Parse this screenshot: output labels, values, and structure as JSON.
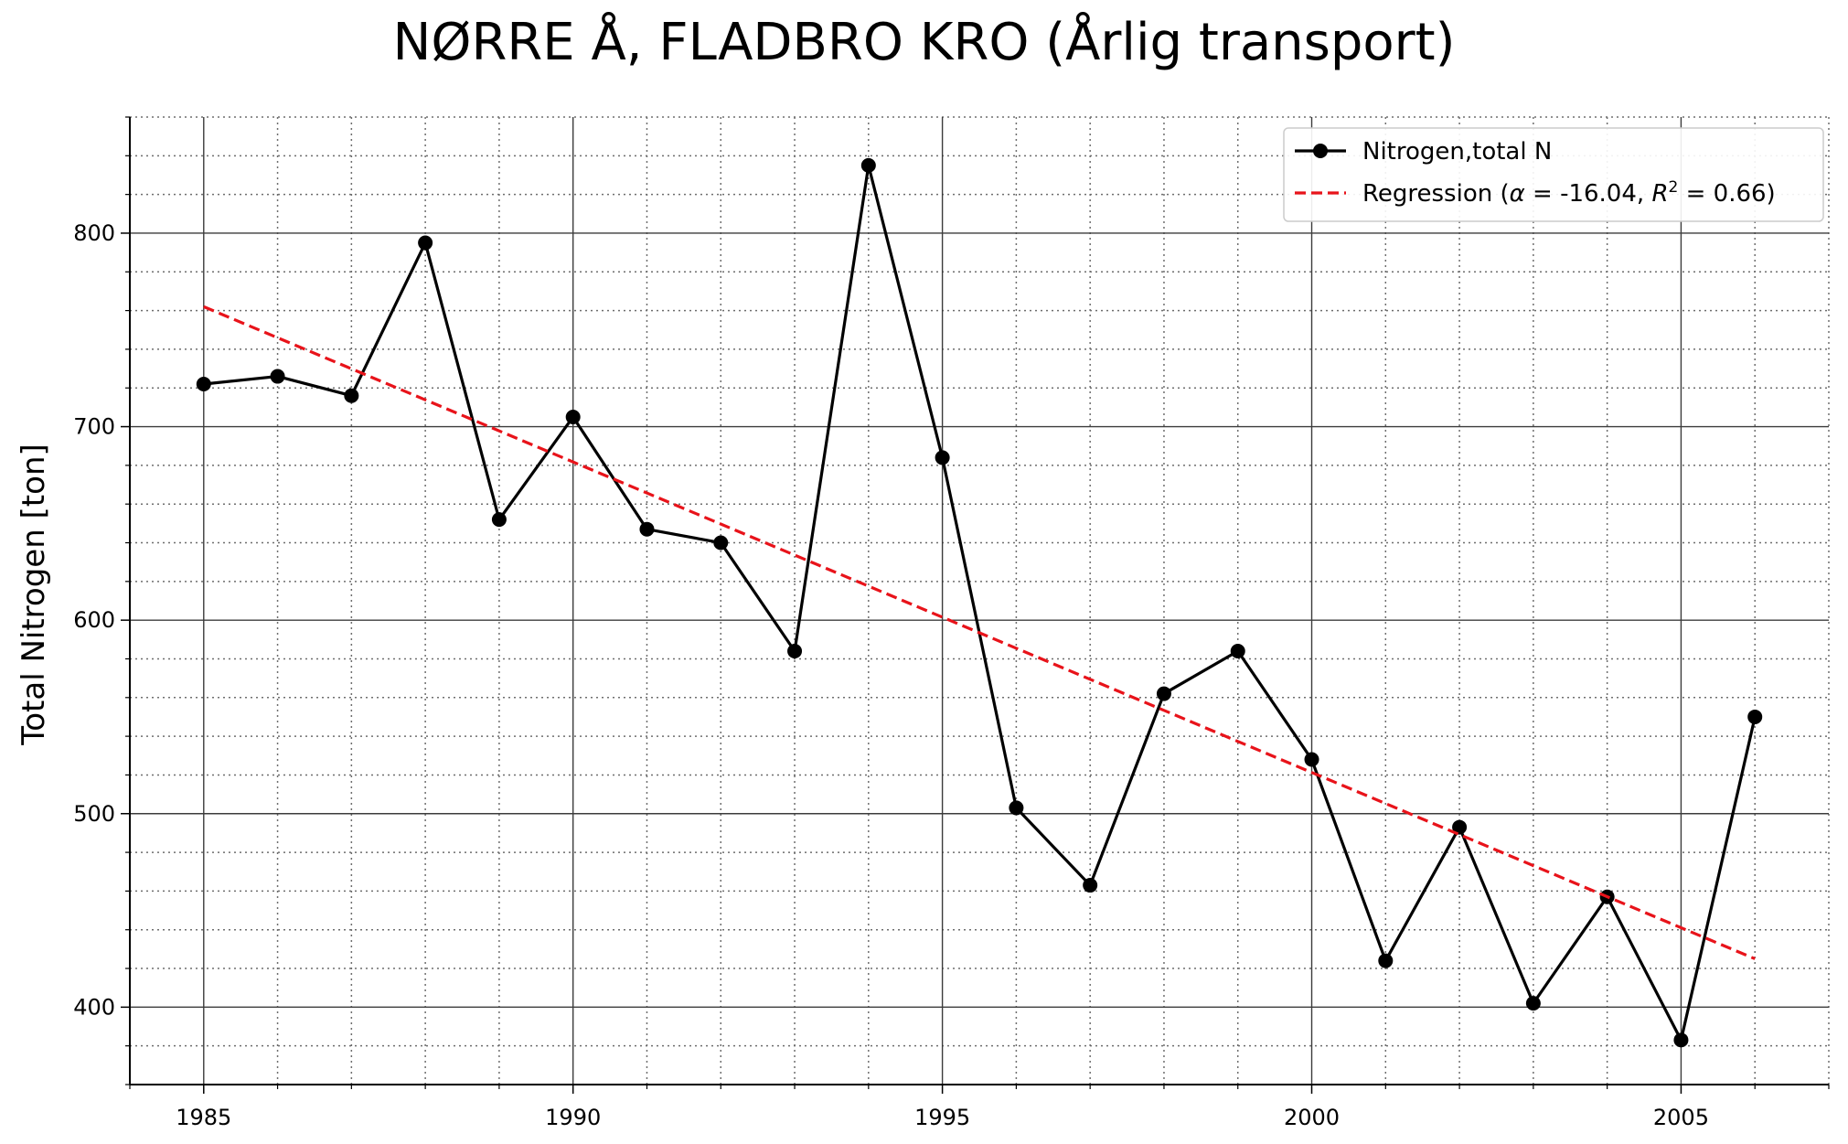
{
  "chart_data": {
    "type": "line",
    "title": "NØRRE Å, FLADBRO KRO (Årlig transport)",
    "xlabel": "",
    "ylabel": "Total Nitrogen [ton]",
    "xlim": [
      1984.0,
      2007.0
    ],
    "ylim": [
      360,
      860
    ],
    "xticks": [
      1985,
      1990,
      1995,
      2000,
      2005
    ],
    "yticks": [
      400,
      500,
      600,
      700,
      800
    ],
    "grid": true,
    "minor_grid": true,
    "legend_position": "top-right",
    "series": [
      {
        "name": "Nitrogen,total N",
        "style": "solid-line-circle-markers",
        "color": "#000000",
        "x": [
          1985,
          1986,
          1987,
          1988,
          1989,
          1990,
          1991,
          1992,
          1993,
          1994,
          1995,
          1996,
          1997,
          1998,
          1999,
          2000,
          2001,
          2002,
          2003,
          2004,
          2005,
          2006
        ],
        "y": [
          722,
          726,
          716,
          795,
          652,
          705,
          647,
          640,
          584,
          835,
          684,
          503,
          463,
          562,
          584,
          528,
          424,
          493,
          402,
          457,
          383,
          550
        ]
      },
      {
        "name_prefix": "Regression (",
        "alpha_symbol": "α",
        "alpha_text": " = -16.04, ",
        "r_symbol": "R",
        "r_exponent": "2",
        "r_text": " = 0.66)",
        "style": "dashed",
        "color": "#e8131a",
        "x": [
          1985,
          2006
        ],
        "y": [
          762,
          425
        ]
      }
    ]
  }
}
